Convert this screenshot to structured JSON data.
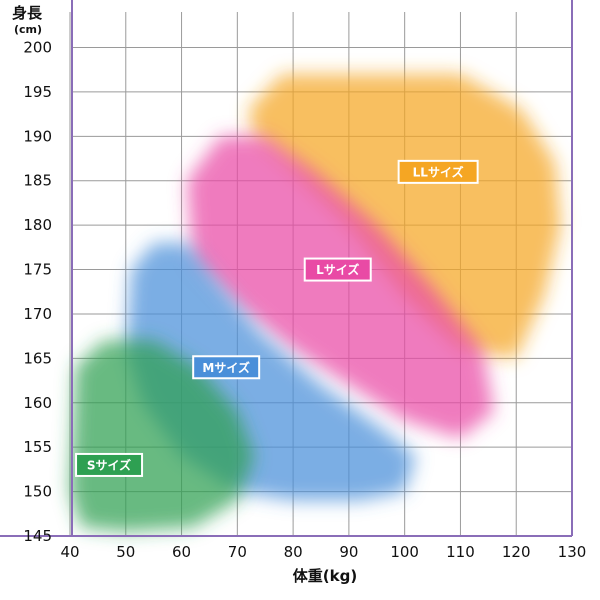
{
  "chart_data": {
    "type": "area",
    "title": "",
    "xlabel": "体重(kg)",
    "ylabel": "身長",
    "ylabel_unit": "(cm)",
    "x_ticks": [
      40,
      50,
      60,
      70,
      80,
      90,
      100,
      110,
      120,
      130
    ],
    "y_ticks": [
      145,
      150,
      155,
      160,
      165,
      170,
      175,
      180,
      185,
      190,
      195,
      200
    ],
    "xlim": [
      40,
      130
    ],
    "ylim": [
      145,
      204
    ],
    "grid": true,
    "regions": [
      {
        "name": "LLサイズ",
        "color": "#f5a623",
        "polygon": [
          [
            72,
            193
          ],
          [
            78,
            197
          ],
          [
            110,
            197
          ],
          [
            121,
            193
          ],
          [
            127,
            187
          ],
          [
            128,
            180
          ],
          [
            125,
            172
          ],
          [
            120,
            165
          ],
          [
            110,
            166
          ],
          [
            100,
            172
          ],
          [
            90,
            180
          ],
          [
            80,
            186
          ],
          [
            73,
            190
          ]
        ],
        "label_at": [
          106,
          186
        ]
      },
      {
        "name": "Lサイズ",
        "color": "#e94aa5",
        "polygon": [
          [
            61,
            185
          ],
          [
            67,
            190
          ],
          [
            75,
            190
          ],
          [
            84,
            186
          ],
          [
            95,
            180
          ],
          [
            105,
            173
          ],
          [
            114,
            166
          ],
          [
            116,
            159
          ],
          [
            110,
            156
          ],
          [
            100,
            158
          ],
          [
            90,
            162
          ],
          [
            80,
            166
          ],
          [
            70,
            171
          ],
          [
            62,
            176
          ]
        ],
        "label_at": [
          88,
          175
        ]
      },
      {
        "name": "Mサイズ",
        "color": "#4a8fd9",
        "polygon": [
          [
            51,
            175
          ],
          [
            55,
            178
          ],
          [
            61,
            178
          ],
          [
            66,
            174
          ],
          [
            74,
            168
          ],
          [
            85,
            162
          ],
          [
            96,
            157
          ],
          [
            102,
            154
          ],
          [
            100,
            150
          ],
          [
            92,
            149
          ],
          [
            80,
            149
          ],
          [
            70,
            150
          ],
          [
            60,
            154
          ],
          [
            53,
            160
          ],
          [
            50,
            166
          ]
        ],
        "label_at": [
          68,
          164
        ]
      },
      {
        "name": "Sサイズ",
        "color": "#2ea052",
        "polygon": [
          [
            41,
            164
          ],
          [
            46,
            167
          ],
          [
            55,
            167
          ],
          [
            63,
            164
          ],
          [
            70,
            159
          ],
          [
            73,
            154
          ],
          [
            70,
            149
          ],
          [
            62,
            146
          ],
          [
            50,
            145.5
          ],
          [
            42,
            146
          ],
          [
            40,
            150
          ]
        ],
        "label_at": [
          47,
          153
        ]
      }
    ]
  }
}
